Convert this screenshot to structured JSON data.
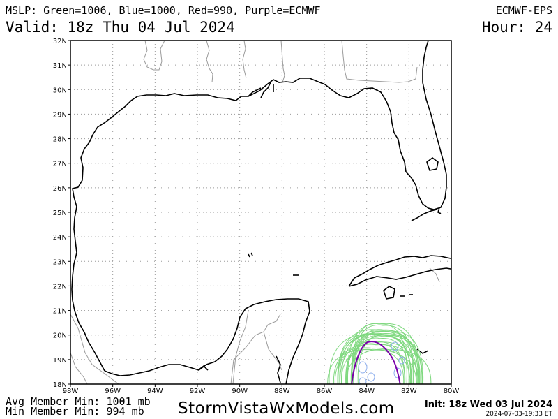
{
  "header": {
    "title": "MSLP: Green=1006, Blue=1000, Red=990, Purple=ECMWF",
    "valid": "Valid: 18z Thu 04 Jul 2024",
    "model": "ECMWF-EPS",
    "hour": "Hour: 24"
  },
  "map": {
    "lat_labels": [
      "32N",
      "31N",
      "30N",
      "29N",
      "28N",
      "27N",
      "26N",
      "25N",
      "24N",
      "23N",
      "22N",
      "21N",
      "20N",
      "19N",
      "18N"
    ],
    "lon_labels": [
      "98W",
      "96W",
      "94W",
      "92W",
      "90W",
      "88W",
      "86W",
      "84W",
      "82W",
      "80W"
    ],
    "colors": {
      "coast": "#000000",
      "border": "#9a9a9a",
      "grid": "#9a9a9a",
      "ensemble_1006": "#7fd87f",
      "ensemble_1000": "#8fb0ee",
      "ecmwf": "#7a00aa"
    }
  },
  "footer": {
    "avg_min": "Avg Member Min: 1001 mb",
    "min_min": "Min Member Min: 994 mb",
    "brand": "StormVistaWxModels.com",
    "init": "Init: 18z Wed 03 Jul 2024",
    "stamp": "2024-07-03-19:33 ET"
  }
}
